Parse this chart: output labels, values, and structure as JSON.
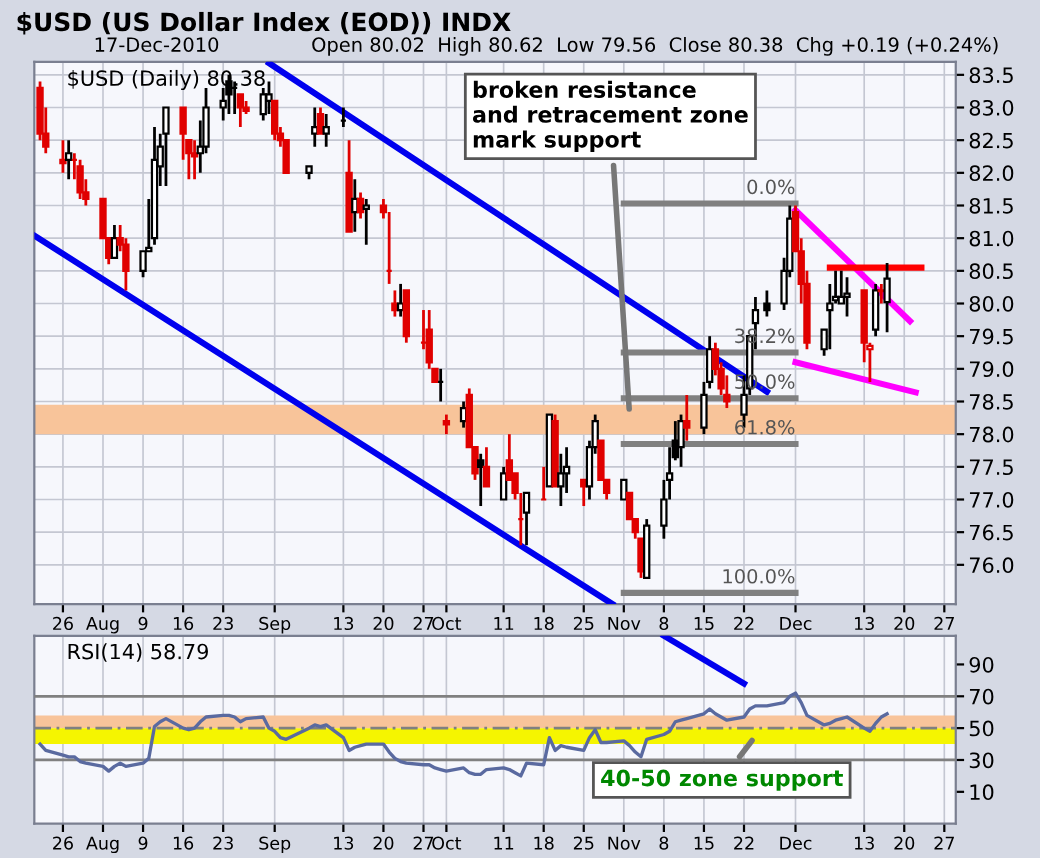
{
  "chart_data": [
    {
      "type": "candlestick",
      "title": "$USD (US Dollar Index (EOD)) INDX",
      "subtitle": "17-Dec-2010",
      "annotations": [
        "Open 80.02  High 80.62  Low 79.56  Close 80.38  Chg +0.19 (+0.24%)",
        "$USD (Daily) 80.38",
        {
          "text": "broken resistance\nand retracement zone\nmark support",
          "x": "2010-11-02",
          "y": 78.3
        },
        {
          "text": "0.0%",
          "x": "2010-12-01",
          "y": 81.53
        },
        {
          "text": "38.2%",
          "x": "2010-12-01",
          "y": 79.25
        },
        {
          "text": "50.0%",
          "x": "2010-12-01",
          "y": 78.55
        },
        {
          "text": "61.8%",
          "x": "2010-12-01",
          "y": 77.85
        },
        {
          "text": "100.0%",
          "x": "2010-12-01",
          "y": 75.57
        }
      ],
      "x": [
        "2010-07-22",
        "2010-07-23",
        "2010-07-26",
        "2010-07-27",
        "2010-07-28",
        "2010-07-29",
        "2010-07-30",
        "2010-08-02",
        "2010-08-03",
        "2010-08-04",
        "2010-08-05",
        "2010-08-06",
        "2010-08-09",
        "2010-08-10",
        "2010-08-11",
        "2010-08-12",
        "2010-08-13",
        "2010-08-16",
        "2010-08-17",
        "2010-08-18",
        "2010-08-19",
        "2010-08-20",
        "2010-08-23",
        "2010-08-24",
        "2010-08-25",
        "2010-08-26",
        "2010-08-27",
        "2010-08-30",
        "2010-08-31",
        "2010-09-01",
        "2010-09-02",
        "2010-09-03",
        "2010-09-07",
        "2010-09-08",
        "2010-09-09",
        "2010-09-10",
        "2010-09-13",
        "2010-09-14",
        "2010-09-15",
        "2010-09-16",
        "2010-09-17",
        "2010-09-20",
        "2010-09-21",
        "2010-09-22",
        "2010-09-23",
        "2010-09-24",
        "2010-09-27",
        "2010-09-28",
        "2010-09-29",
        "2010-09-30",
        "2010-10-01",
        "2010-10-04",
        "2010-10-05",
        "2010-10-06",
        "2010-10-07",
        "2010-10-08",
        "2010-10-11",
        "2010-10-12",
        "2010-10-13",
        "2010-10-14",
        "2010-10-15",
        "2010-10-18",
        "2010-10-19",
        "2010-10-20",
        "2010-10-21",
        "2010-10-22",
        "2010-10-25",
        "2010-10-26",
        "2010-10-27",
        "2010-10-28",
        "2010-10-29",
        "2010-11-01",
        "2010-11-02",
        "2010-11-03",
        "2010-11-04",
        "2010-11-05",
        "2010-11-08",
        "2010-11-09",
        "2010-11-10",
        "2010-11-11",
        "2010-11-12",
        "2010-11-15",
        "2010-11-16",
        "2010-11-17",
        "2010-11-18",
        "2010-11-19",
        "2010-11-22",
        "2010-11-23",
        "2010-11-24",
        "2010-11-26",
        "2010-11-29",
        "2010-11-30",
        "2010-12-01",
        "2010-12-02",
        "2010-12-03",
        "2010-12-06",
        "2010-12-07",
        "2010-12-08",
        "2010-12-09",
        "2010-12-10",
        "2010-12-13",
        "2010-12-14",
        "2010-12-15",
        "2010-12-16",
        "2010-12-17"
      ],
      "ohlc": [
        [
          83.3,
          83.4,
          82.5,
          82.6
        ],
        [
          82.6,
          83.0,
          82.3,
          82.4
        ],
        [
          82.2,
          82.5,
          82.0,
          82.15
        ],
        [
          82.2,
          82.5,
          81.9,
          82.3
        ],
        [
          82.2,
          82.3,
          81.9,
          82.2
        ],
        [
          82.1,
          82.2,
          81.6,
          81.7
        ],
        [
          81.7,
          81.9,
          81.5,
          81.6
        ],
        [
          81.6,
          81.6,
          81.0,
          81.0
        ],
        [
          81.0,
          81.0,
          80.6,
          80.7
        ],
        [
          80.7,
          81.2,
          80.7,
          81.0
        ],
        [
          81.0,
          81.2,
          80.8,
          80.9
        ],
        [
          80.9,
          81.0,
          80.2,
          80.5
        ],
        [
          80.5,
          80.8,
          80.4,
          80.8
        ],
        [
          80.8,
          81.6,
          80.8,
          80.85
        ],
        [
          81.0,
          82.7,
          80.9,
          82.2
        ],
        [
          82.1,
          82.6,
          81.8,
          82.4
        ],
        [
          82.6,
          83.0,
          81.8,
          83.0
        ],
        [
          83.0,
          83.0,
          82.2,
          82.6
        ],
        [
          82.5,
          82.5,
          81.9,
          82.3
        ],
        [
          82.3,
          82.5,
          81.9,
          82.25
        ],
        [
          82.3,
          82.8,
          82.0,
          82.4
        ],
        [
          82.4,
          83.3,
          82.3,
          83.0
        ],
        [
          83.0,
          83.3,
          82.8,
          83.1
        ],
        [
          83.4,
          83.5,
          82.9,
          83.2
        ],
        [
          83.3,
          83.4,
          82.9,
          83.3
        ],
        [
          83.2,
          83.2,
          82.7,
          83.0
        ],
        [
          83.0,
          83.1,
          82.9,
          82.95
        ],
        [
          82.9,
          83.3,
          82.8,
          83.2
        ],
        [
          83.1,
          83.4,
          82.9,
          83.2
        ],
        [
          83.1,
          83.1,
          82.5,
          82.6
        ],
        [
          82.6,
          82.7,
          82.4,
          82.5
        ],
        [
          82.5,
          82.5,
          82.0,
          82.0
        ],
        [
          82.0,
          82.1,
          81.9,
          82.1
        ],
        [
          82.6,
          83.0,
          82.4,
          82.7
        ],
        [
          82.9,
          83.0,
          82.6,
          82.6
        ],
        [
          82.6,
          82.9,
          82.4,
          82.7
        ],
        [
          82.8,
          83.0,
          82.7,
          82.8
        ],
        [
          82.0,
          82.5,
          81.1,
          81.1
        ],
        [
          81.4,
          81.9,
          81.1,
          81.6
        ],
        [
          81.6,
          81.7,
          81.3,
          81.4
        ],
        [
          81.45,
          81.6,
          80.9,
          81.5
        ],
        [
          81.5,
          81.6,
          81.3,
          81.4
        ],
        [
          80.5,
          81.4,
          80.3,
          80.5
        ],
        [
          80.0,
          80.2,
          79.8,
          79.9
        ],
        [
          79.9,
          80.3,
          79.8,
          80.0
        ],
        [
          80.2,
          80.2,
          79.4,
          79.5
        ],
        [
          79.4,
          79.9,
          79.3,
          79.4
        ],
        [
          79.6,
          79.9,
          79.0,
          79.1
        ],
        [
          79.0,
          79.0,
          78.8,
          78.8
        ],
        [
          78.8,
          79.0,
          78.5,
          78.8
        ],
        [
          78.2,
          78.3,
          78.0,
          78.15
        ],
        [
          78.2,
          78.5,
          78.1,
          78.4
        ],
        [
          78.6,
          78.7,
          77.8,
          77.8
        ],
        [
          77.8,
          77.8,
          77.3,
          77.4
        ],
        [
          77.6,
          77.7,
          76.9,
          77.5
        ],
        [
          77.5,
          77.8,
          77.2,
          77.2
        ],
        [
          77.0,
          77.5,
          77.0,
          77.4
        ],
        [
          77.6,
          78.0,
          77.3,
          77.3
        ],
        [
          77.4,
          77.4,
          77.0,
          77.1
        ],
        [
          76.7,
          77.1,
          76.3,
          76.7
        ],
        [
          76.8,
          77.1,
          76.3,
          77.1
        ],
        [
          77.0,
          77.5,
          77.0,
          77.0
        ],
        [
          77.2,
          78.3,
          77.2,
          78.3
        ],
        [
          78.2,
          78.3,
          77.2,
          77.2
        ],
        [
          77.2,
          77.7,
          76.9,
          77.4
        ],
        [
          77.4,
          77.8,
          77.1,
          77.5
        ],
        [
          77.3,
          77.3,
          76.9,
          77.2
        ],
        [
          77.2,
          77.9,
          77.0,
          77.8
        ],
        [
          77.8,
          78.3,
          77.7,
          78.2
        ],
        [
          77.9,
          77.9,
          77.3,
          77.3
        ],
        [
          77.3,
          77.3,
          77.0,
          77.1
        ],
        [
          77.0,
          77.3,
          77.0,
          77.3
        ],
        [
          77.1,
          77.1,
          76.7,
          76.7
        ],
        [
          76.7,
          76.7,
          76.4,
          76.5
        ],
        [
          76.4,
          76.4,
          75.8,
          75.9
        ],
        [
          75.8,
          76.7,
          75.8,
          76.6
        ],
        [
          76.6,
          77.3,
          76.4,
          77.0
        ],
        [
          77.3,
          77.8,
          77.0,
          77.4
        ],
        [
          77.9,
          78.2,
          77.6,
          77.65
        ],
        [
          77.8,
          78.3,
          77.5,
          78.2
        ],
        [
          78.2,
          78.6,
          77.9,
          78.1
        ],
        [
          78.1,
          78.8,
          78.0,
          78.6
        ],
        [
          78.8,
          79.5,
          78.7,
          79.3
        ],
        [
          79.3,
          79.4,
          78.9,
          79.0
        ],
        [
          79.0,
          79.1,
          78.6,
          78.7
        ],
        [
          78.6,
          78.9,
          78.4,
          78.5
        ],
        [
          78.3,
          78.9,
          78.1,
          78.6
        ],
        [
          78.7,
          79.5,
          78.6,
          79.5
        ],
        [
          79.7,
          80.1,
          79.3,
          79.9
        ],
        [
          80.0,
          80.2,
          79.8,
          79.9
        ],
        [
          80.0,
          80.7,
          79.9,
          80.5
        ],
        [
          80.5,
          81.5,
          80.4,
          81.3
        ],
        [
          81.4,
          81.5,
          80.8,
          80.8
        ],
        [
          80.8,
          81.0,
          80.0,
          80.3
        ],
        [
          80.3,
          80.5,
          79.3,
          79.4
        ],
        [
          79.3,
          79.6,
          79.2,
          79.6
        ],
        [
          79.9,
          80.3,
          79.3,
          80.0
        ],
        [
          80.05,
          80.5,
          80.0,
          80.1
        ],
        [
          80.0,
          80.5,
          80.0,
          80.1
        ],
        [
          80.1,
          80.4,
          79.8,
          80.15
        ],
        [
          80.2,
          80.2,
          79.1,
          79.4
        ],
        [
          79.3,
          79.4,
          78.8,
          79.35
        ],
        [
          79.6,
          80.3,
          79.5,
          80.2
        ],
        [
          80.2,
          80.3,
          80.0,
          80.19
        ],
        [
          80.02,
          80.62,
          79.56,
          80.38
        ]
      ],
      "colors": [
        "#e00000",
        "#e00000",
        "#e00000",
        "#000000",
        "#e00000",
        "#e00000",
        "#e00000",
        "#e00000",
        "#e00000",
        "#000000",
        "#e00000",
        "#e00000",
        "#000000",
        "#000000",
        "#000000",
        "#000000",
        "#000000",
        "#e00000",
        "#e00000",
        "#e00000",
        "#000000",
        "#000000",
        "#000000",
        "#000000",
        "#000000",
        "#e00000",
        "#e00000",
        "#000000",
        "#000000",
        "#e00000",
        "#e00000",
        "#e00000",
        "#000000",
        "#000000",
        "#e00000",
        "#000000",
        "#000000",
        "#e00000",
        "#000000",
        "#e00000",
        "#000000",
        "#e00000",
        "#e00000",
        "#e00000",
        "#000000",
        "#e00000",
        "#e00000",
        "#e00000",
        "#e00000",
        "#000000",
        "#e00000",
        "#000000",
        "#e00000",
        "#e00000",
        "#000000",
        "#e00000",
        "#000000",
        "#e00000",
        "#e00000",
        "#e00000",
        "#000000",
        "#e00000",
        "#000000",
        "#e00000",
        "#000000",
        "#000000",
        "#e00000",
        "#000000",
        "#000000",
        "#e00000",
        "#e00000",
        "#000000",
        "#e00000",
        "#e00000",
        "#e00000",
        "#000000",
        "#000000",
        "#000000",
        "#000000",
        "#000000",
        "#e00000",
        "#000000",
        "#000000",
        "#e00000",
        "#e00000",
        "#e00000",
        "#000000",
        "#000000",
        "#000000",
        "#000000",
        "#000000",
        "#000000",
        "#e00000",
        "#e00000",
        "#e00000",
        "#000000",
        "#000000",
        "#000000",
        "#000000",
        "#000000",
        "#e00000",
        "#e00000",
        "#000000",
        "#e00000",
        "#000000"
      ],
      "series": [
        {
          "type": "line",
          "x": [
            "2010-07-21",
            "2010-10-30"
          ],
          "values": [
            81.04,
            75.4
          ],
          "color": "#0000ee"
        },
        {
          "type": "line",
          "x": [
            "2010-08-31",
            "2010-11-26"
          ],
          "values": [
            83.68,
            78.65
          ],
          "color": "#0000ee"
        },
        {
          "type": "line",
          "x": [
            "2010-12-01",
            "2010-12-21"
          ],
          "values": [
            81.43,
            79.73
          ],
          "color": "#ff00ff"
        },
        {
          "type": "line",
          "x": [
            "2010-12-01",
            "2010-12-22"
          ],
          "values": [
            79.1,
            78.64
          ],
          "color": "#ff00ff"
        },
        {
          "type": "line",
          "x": [
            "2010-12-07",
            "2010-12-23"
          ],
          "values": [
            80.55,
            80.55
          ],
          "color": "#ff0000"
        },
        {
          "type": "line",
          "x": [
            "2010-11-01",
            "2010-12-01"
          ],
          "values": [
            81.53,
            81.53
          ],
          "color": "#808080"
        },
        {
          "type": "line",
          "x": [
            "2010-11-01",
            "2010-12-01"
          ],
          "values": [
            79.25,
            79.25
          ],
          "color": "#808080"
        },
        {
          "type": "line",
          "x": [
            "2010-11-01",
            "2010-12-01"
          ],
          "values": [
            78.55,
            78.55
          ],
          "color": "#808080"
        },
        {
          "type": "line",
          "x": [
            "2010-11-01",
            "2010-12-01"
          ],
          "values": [
            77.85,
            77.85
          ],
          "color": "#808080"
        },
        {
          "type": "line",
          "x": [
            "2010-11-01",
            "2010-12-01"
          ],
          "values": [
            75.57,
            75.57
          ],
          "color": "#808080"
        }
      ],
      "bands": [
        {
          "axis": "y",
          "from": 78.0,
          "to": 78.45,
          "color": "#f8c49a"
        }
      ],
      "xlim": [
        "2010-07-21",
        "2010-12-29"
      ],
      "xticks": [
        {
          "value": "2010-07-26",
          "label": "26"
        },
        {
          "value": "2010-08-02",
          "label": "Aug"
        },
        {
          "value": "2010-08-09",
          "label": "9"
        },
        {
          "value": "2010-08-16",
          "label": "16"
        },
        {
          "value": "2010-08-23",
          "label": "23"
        },
        {
          "value": "2010-09-01",
          "label": "Sep"
        },
        {
          "value": "2010-09-13",
          "label": "13"
        },
        {
          "value": "2010-09-20",
          "label": "20"
        },
        {
          "value": "2010-09-27",
          "label": "27"
        },
        {
          "value": "2010-10-01",
          "label": "Oct"
        },
        {
          "value": "2010-10-11",
          "label": "11"
        },
        {
          "value": "2010-10-18",
          "label": "18"
        },
        {
          "value": "2010-10-25",
          "label": "25"
        },
        {
          "value": "2010-11-01",
          "label": "Nov"
        },
        {
          "value": "2010-11-08",
          "label": "8"
        },
        {
          "value": "2010-11-15",
          "label": "15"
        },
        {
          "value": "2010-11-22",
          "label": "22"
        },
        {
          "value": "2010-12-01",
          "label": "Dec"
        },
        {
          "value": "2010-12-13",
          "label": "13"
        },
        {
          "value": "2010-12-20",
          "label": "20"
        },
        {
          "value": "2010-12-27",
          "label": "27"
        }
      ],
      "ylim": [
        75.4,
        83.7
      ],
      "yticks": [
        {
          "value": 76,
          "label": "76.0"
        },
        76.5,
        {
          "value": 77,
          "label": "77.0"
        },
        77.5,
        {
          "value": 78,
          "label": "78.0"
        },
        78.5,
        {
          "value": 79,
          "label": "79.0"
        },
        79.5,
        {
          "value": 80,
          "label": "80.0"
        },
        80.5,
        {
          "value": 81,
          "label": "81.0"
        },
        81.5,
        {
          "value": 82,
          "label": "82.0"
        },
        82.5,
        {
          "value": 83,
          "label": "83.0"
        },
        83.5
      ],
      "grid": true
    },
    {
      "type": "line",
      "annotations": [
        "RSI(14) 58.79",
        {
          "text": "40-50 zone support",
          "x": "2010-11-24",
          "y": 45
        }
      ],
      "x": [
        "2010-07-22",
        "2010-07-23",
        "2010-07-26",
        "2010-07-27",
        "2010-07-28",
        "2010-07-29",
        "2010-07-30",
        "2010-08-02",
        "2010-08-03",
        "2010-08-04",
        "2010-08-05",
        "2010-08-06",
        "2010-08-09",
        "2010-08-10",
        "2010-08-11",
        "2010-08-12",
        "2010-08-13",
        "2010-08-16",
        "2010-08-17",
        "2010-08-18",
        "2010-08-19",
        "2010-08-20",
        "2010-08-23",
        "2010-08-24",
        "2010-08-25",
        "2010-08-26",
        "2010-08-27",
        "2010-08-30",
        "2010-08-31",
        "2010-09-01",
        "2010-09-02",
        "2010-09-03",
        "2010-09-07",
        "2010-09-08",
        "2010-09-09",
        "2010-09-10",
        "2010-09-13",
        "2010-09-14",
        "2010-09-15",
        "2010-09-16",
        "2010-09-17",
        "2010-09-20",
        "2010-09-21",
        "2010-09-22",
        "2010-09-23",
        "2010-09-24",
        "2010-09-27",
        "2010-09-28",
        "2010-09-29",
        "2010-09-30",
        "2010-10-01",
        "2010-10-04",
        "2010-10-05",
        "2010-10-06",
        "2010-10-07",
        "2010-10-08",
        "2010-10-11",
        "2010-10-12",
        "2010-10-13",
        "2010-10-14",
        "2010-10-15",
        "2010-10-18",
        "2010-10-19",
        "2010-10-20",
        "2010-10-21",
        "2010-10-22",
        "2010-10-25",
        "2010-10-26",
        "2010-10-27",
        "2010-10-28",
        "2010-10-29",
        "2010-11-01",
        "2010-11-02",
        "2010-11-03",
        "2010-11-04",
        "2010-11-05",
        "2010-11-08",
        "2010-11-09",
        "2010-11-10",
        "2010-11-11",
        "2010-11-12",
        "2010-11-15",
        "2010-11-16",
        "2010-11-17",
        "2010-11-18",
        "2010-11-19",
        "2010-11-22",
        "2010-11-23",
        "2010-11-24",
        "2010-11-26",
        "2010-11-29",
        "2010-11-30",
        "2010-12-01",
        "2010-12-02",
        "2010-12-03",
        "2010-12-06",
        "2010-12-07",
        "2010-12-08",
        "2010-12-09",
        "2010-12-10",
        "2010-12-13",
        "2010-12-14",
        "2010-12-15",
        "2010-12-16",
        "2010-12-17"
      ],
      "series": [
        {
          "color": "#5a6aa0",
          "values": [
            40,
            36,
            33,
            32,
            32,
            29,
            28,
            26,
            23,
            26,
            28,
            26,
            28,
            31,
            51,
            54,
            56,
            50,
            49,
            50,
            54,
            57,
            58,
            58,
            57,
            54,
            56,
            57,
            50,
            48,
            44,
            43,
            50,
            52,
            51,
            52,
            44,
            36,
            38,
            39,
            40,
            40,
            35,
            31,
            29,
            28,
            27,
            27,
            25,
            24,
            23,
            25,
            22,
            21,
            21,
            24,
            25,
            24,
            22,
            20,
            28,
            27,
            44,
            36,
            39,
            38,
            36,
            44,
            49,
            41,
            41,
            42,
            39,
            35,
            32,
            43,
            46,
            48,
            54,
            55,
            56,
            59,
            62,
            59,
            57,
            55,
            57,
            62,
            64,
            64,
            66,
            70,
            72,
            66,
            58,
            52,
            53,
            55,
            56,
            57,
            50,
            48,
            53,
            57,
            59
          ]
        },
        {
          "type": "line",
          "x": [
            "2010-11-08",
            "2010-11-22"
          ],
          "values": [
            108,
            78
          ],
          "color": "#0000ee"
        }
      ],
      "ref_lines": [
        {
          "axis": "y",
          "value": 70,
          "color": "#808080"
        },
        {
          "axis": "y",
          "value": 30,
          "color": "#808080"
        },
        {
          "axis": "y",
          "value": 50,
          "color": "#808080",
          "line_style": "dashed"
        }
      ],
      "bands": [
        {
          "axis": "y",
          "from": 50,
          "to": 58,
          "color": "#f8c49a"
        },
        {
          "axis": "y",
          "from": 40,
          "to": 50,
          "color": "#f5f500"
        }
      ],
      "xlim": [
        "2010-07-21",
        "2010-12-29"
      ],
      "xticks": [
        {
          "value": "2010-07-26",
          "label": "26"
        },
        {
          "value": "2010-08-02",
          "label": "Aug"
        },
        {
          "value": "2010-08-09",
          "label": "9"
        },
        {
          "value": "2010-08-16",
          "label": "16"
        },
        {
          "value": "2010-08-23",
          "label": "23"
        },
        {
          "value": "2010-09-01",
          "label": "Sep"
        },
        {
          "value": "2010-09-13",
          "label": "13"
        },
        {
          "value": "2010-09-20",
          "label": "20"
        },
        {
          "value": "2010-09-27",
          "label": "27"
        },
        {
          "value": "2010-10-01",
          "label": "Oct"
        },
        {
          "value": "2010-10-11",
          "label": "11"
        },
        {
          "value": "2010-10-18",
          "label": "18"
        },
        {
          "value": "2010-10-25",
          "label": "25"
        },
        {
          "value": "2010-11-01",
          "label": "Nov"
        },
        {
          "value": "2010-11-08",
          "label": "8"
        },
        {
          "value": "2010-11-15",
          "label": "15"
        },
        {
          "value": "2010-11-22",
          "label": "22"
        },
        {
          "value": "2010-12-01",
          "label": "Dec"
        },
        {
          "value": "2010-12-13",
          "label": "13"
        },
        {
          "value": "2010-12-20",
          "label": "20"
        },
        {
          "value": "2010-12-27",
          "label": "27"
        }
      ],
      "ylim": [
        -10,
        108
      ],
      "yticks": [
        10,
        30,
        50,
        70,
        90
      ],
      "grid": "x"
    }
  ]
}
